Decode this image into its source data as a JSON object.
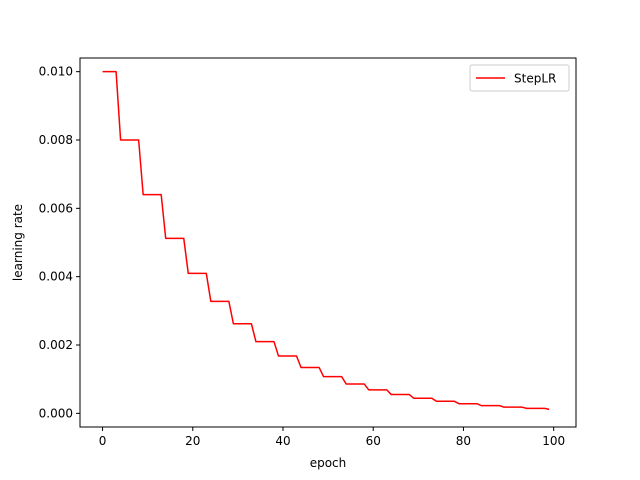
{
  "chart_data": {
    "type": "line",
    "title": "",
    "xlabel": "epoch",
    "ylabel": "learning rate",
    "xlim": [
      -5,
      104.95
    ],
    "ylim": [
      -0.0004,
      0.0104
    ],
    "xticks": [
      0,
      20,
      40,
      60,
      80,
      100
    ],
    "xtick_labels": [
      "0",
      "20",
      "40",
      "60",
      "80",
      "100"
    ],
    "yticks": [
      0.0,
      0.002,
      0.004,
      0.006,
      0.008,
      0.01
    ],
    "ytick_labels": [
      "0.000",
      "0.002",
      "0.004",
      "0.006",
      "0.008",
      "0.010"
    ],
    "grid": false,
    "legend": {
      "position": "top-right"
    },
    "series": [
      {
        "name": "StepLR",
        "color": "#ff0000",
        "step_rule": {
          "initial_lr": 0.01,
          "gamma": 0.8,
          "step_size": 5,
          "offset": 2,
          "epochs": [
            0,
            99
          ]
        },
        "x": [
          0,
          1,
          2,
          3,
          4,
          5,
          6,
          7,
          8,
          9,
          10,
          11,
          12,
          13,
          14,
          15,
          16,
          17,
          18,
          19,
          20,
          21,
          22,
          23,
          24,
          25,
          26,
          27,
          28,
          29,
          30,
          31,
          32,
          33,
          34,
          35,
          36,
          37,
          38,
          39,
          40,
          41,
          42,
          43,
          44,
          45,
          46,
          47,
          48,
          49,
          50,
          51,
          52,
          53,
          54,
          55,
          56,
          57,
          58,
          59,
          60,
          61,
          62,
          63,
          64,
          65,
          66,
          67,
          68,
          69,
          70,
          71,
          72,
          73,
          74,
          75,
          76,
          77,
          78,
          79,
          80,
          81,
          82,
          83,
          84,
          85,
          86,
          87,
          88,
          89,
          90,
          91,
          92,
          93,
          94,
          95,
          96,
          97,
          98,
          99
        ],
        "values": [
          0.01,
          0.01,
          0.01,
          0.01,
          0.008,
          0.008,
          0.008,
          0.008,
          0.008,
          0.0064,
          0.0064,
          0.0064,
          0.0064,
          0.0064,
          0.00512,
          0.00512,
          0.00512,
          0.00512,
          0.00512,
          0.004096,
          0.004096,
          0.004096,
          0.004096,
          0.004096,
          0.0032768,
          0.0032768,
          0.0032768,
          0.0032768,
          0.0032768,
          0.00262144,
          0.00262144,
          0.00262144,
          0.00262144,
          0.00262144,
          0.002097152,
          0.002097152,
          0.002097152,
          0.002097152,
          0.002097152,
          0.0016777216,
          0.0016777216,
          0.0016777216,
          0.0016777216,
          0.0016777216,
          0.00134217728,
          0.00134217728,
          0.00134217728,
          0.00134217728,
          0.00134217728,
          0.001073741824,
          0.001073741824,
          0.001073741824,
          0.001073741824,
          0.001073741824,
          0.0008589934592,
          0.0008589934592,
          0.0008589934592,
          0.0008589934592,
          0.0008589934592,
          0.00068719476736,
          0.00068719476736,
          0.00068719476736,
          0.00068719476736,
          0.00068719476736,
          0.000549755813888,
          0.000549755813888,
          0.000549755813888,
          0.000549755813888,
          0.000549755813888,
          0.0004398046511104,
          0.0004398046511104,
          0.0004398046511104,
          0.0004398046511104,
          0.0004398046511104,
          0.00035184372088832,
          0.00035184372088832,
          0.00035184372088832,
          0.00035184372088832,
          0.00035184372088832,
          0.000281474976710656,
          0.000281474976710656,
          0.000281474976710656,
          0.000281474976710656,
          0.000281474976710656,
          0.0002251799813685248,
          0.0002251799813685248,
          0.0002251799813685248,
          0.0002251799813685248,
          0.0002251799813685248,
          0.00018014398509481983,
          0.00018014398509481983,
          0.00018014398509481983,
          0.00018014398509481983,
          0.00018014398509481983,
          0.00014411518807585586,
          0.00014411518807585586,
          0.00014411518807585586,
          0.00014411518807585586,
          0.00014411518807585586,
          0.00011529215046068469
        ]
      }
    ]
  }
}
